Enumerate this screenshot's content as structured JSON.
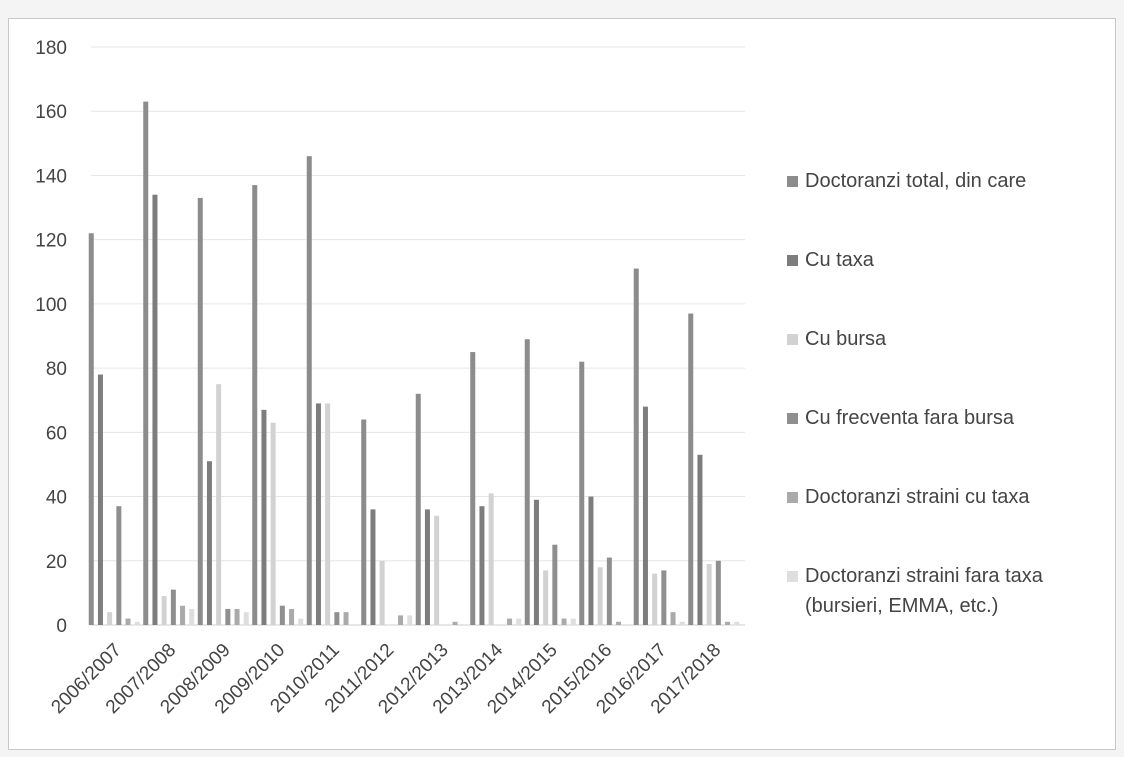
{
  "chart_data": {
    "type": "bar",
    "categories": [
      "2006/2007",
      "2007/2008",
      "2008/2009",
      "2009/2010",
      "2010/2011",
      "2011/2012",
      "2012/2013",
      "2013/2014",
      "2014/2015",
      "2015/2016",
      "2016/2017",
      "2017/2018"
    ],
    "ylim": [
      0,
      180
    ],
    "yticks": [
      0,
      20,
      40,
      60,
      80,
      100,
      120,
      140,
      160,
      180
    ],
    "grid": true,
    "legend_position": "right",
    "series": [
      {
        "name": "Doctoranzi total, din care",
        "color": "#8c8c8c",
        "values": [
          122,
          163,
          133,
          137,
          146,
          64,
          72,
          85,
          89,
          82,
          111,
          97
        ]
      },
      {
        "name": "Cu taxa",
        "color": "#7d7d7d",
        "values": [
          78,
          134,
          51,
          67,
          69,
          36,
          36,
          37,
          39,
          40,
          68,
          53
        ]
      },
      {
        "name": "Cu bursa",
        "color": "#d2d2d2",
        "values": [
          4,
          9,
          75,
          63,
          69,
          20,
          34,
          41,
          17,
          18,
          16,
          19
        ]
      },
      {
        "name": "Cu frecventa fara bursa",
        "color": "#8f8f8f",
        "values": [
          37,
          11,
          5,
          6,
          4,
          0,
          0,
          0,
          25,
          21,
          17,
          20
        ]
      },
      {
        "name": "Doctoranzi straini cu taxa",
        "color": "#aaaaaa",
        "values": [
          2,
          6,
          5,
          5,
          4,
          3,
          1,
          2,
          2,
          1,
          4,
          1
        ]
      },
      {
        "name": "Doctoranzi straini fara taxa\n(bursieri, EMMA, etc.)",
        "color": "#dedede",
        "values": [
          1,
          5,
          4,
          2,
          0,
          3,
          0,
          2,
          2,
          0,
          1,
          1
        ]
      }
    ]
  }
}
